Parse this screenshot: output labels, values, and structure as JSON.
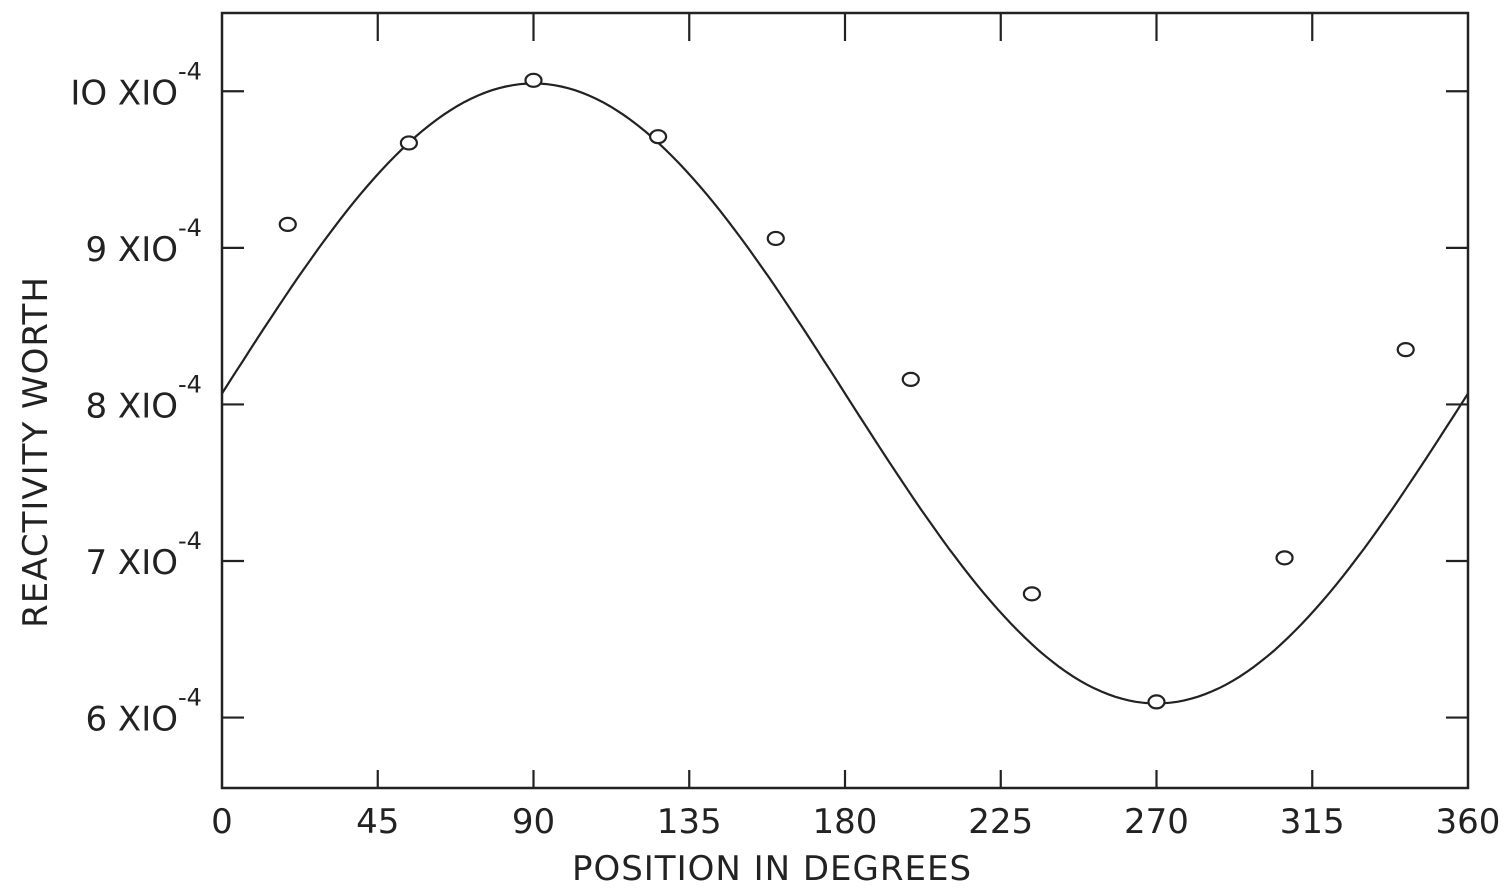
{
  "chart_data": {
    "type": "scatter",
    "title": "",
    "xlabel": "POSITION IN DEGREES",
    "ylabel": "REACTIVITY WORTH",
    "xlim": [
      0,
      360
    ],
    "ylim": [
      5.55,
      10.5
    ],
    "x_ticks": [
      0,
      45,
      90,
      135,
      180,
      225,
      270,
      315,
      360
    ],
    "x_tick_labels": [
      "0",
      "45",
      "90",
      "135",
      "180",
      "225",
      "270",
      "315",
      "360"
    ],
    "y_ticks": [
      6,
      7,
      8,
      9,
      10
    ],
    "y_tick_labels": [
      {
        "mantissa": "6",
        "mult": "X",
        "base": "IO",
        "exp": "-4"
      },
      {
        "mantissa": "7",
        "mult": "X",
        "base": "IO",
        "exp": "-4"
      },
      {
        "mantissa": "8",
        "mult": "X",
        "base": "IO",
        "exp": "-4"
      },
      {
        "mantissa": "9",
        "mult": "X",
        "base": "IO",
        "exp": "-4"
      },
      {
        "mantissa": "IO",
        "mult": "X",
        "base": "IO",
        "exp": "-4"
      }
    ],
    "y_units": "x10^-4",
    "grid": false,
    "series": [
      {
        "kind": "points",
        "marker": "open-circle",
        "x": [
          19,
          54,
          90,
          126,
          160,
          199,
          234,
          270,
          307,
          342
        ],
        "y": [
          9.15,
          9.67,
          10.07,
          9.71,
          9.06,
          8.16,
          6.79,
          6.1,
          7.02,
          8.35
        ]
      },
      {
        "kind": "fit-curve",
        "model": "sinusoid",
        "offset": 8.07,
        "amplitude": 1.98,
        "period": 360,
        "x": [
          0,
          15,
          30,
          45,
          60,
          75,
          90,
          105,
          120,
          135,
          150,
          165,
          180,
          195,
          210,
          225,
          240,
          255,
          270,
          285,
          300,
          315,
          330,
          345,
          360
        ],
        "y": [
          8.07,
          8.58,
          9.06,
          9.47,
          9.78,
          9.98,
          10.05,
          9.98,
          9.78,
          9.47,
          9.06,
          8.58,
          8.07,
          7.56,
          7.08,
          6.67,
          6.36,
          6.16,
          6.09,
          6.16,
          6.36,
          6.67,
          7.08,
          7.56,
          8.07
        ]
      }
    ],
    "colors": {
      "ink": "#222222",
      "background": "#ffffff"
    }
  }
}
